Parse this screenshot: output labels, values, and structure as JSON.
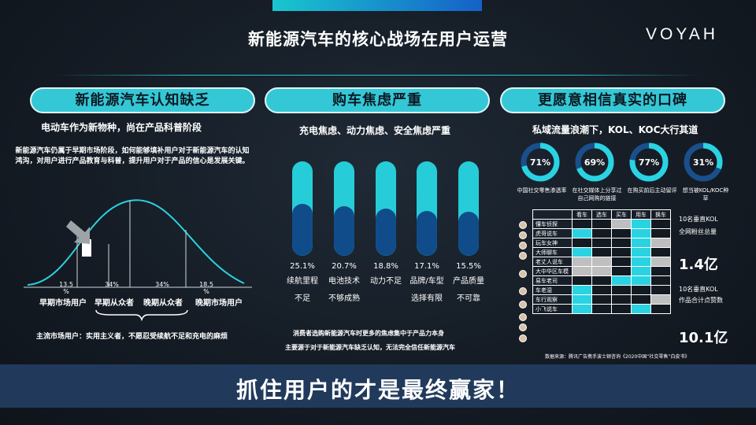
{
  "header": {
    "title": "新能源汽车的核心战场在用户运营",
    "logo": "VOYAH"
  },
  "col1": {
    "pill": "新能源汽车认知缺乏",
    "subhead": "电动车作为新物种，尚在产品科普阶段",
    "paragraph": "新能源汽车仍属于早期市场阶段，如何能够填补用户对于新能源汽车的认知鸿沟，对用户进行产品教育与科普，提升用户对于产品的信心是发展关键。",
    "percents": [
      "13.5 %",
      "34%",
      "34%",
      "18.5 %"
    ],
    "segments": [
      "早期市场用户",
      "早期从众者",
      "晚期从众者",
      "晚期市场用户"
    ],
    "footnote": "主流市场用户：实用主义者，不愿忍受续航不足和充电的麻烦"
  },
  "col2": {
    "pill": "购车焦虑严重",
    "subhead": "充电焦虑、动力焦虑、安全焦虑严重",
    "capsules": [
      {
        "value": "25.1%",
        "fill": 0.55,
        "line1": "续航里程",
        "line2": "不足"
      },
      {
        "value": "20.7%",
        "fill": 0.53,
        "line1": "电池技术",
        "line2": "不够成熟"
      },
      {
        "value": "18.8%",
        "fill": 0.5,
        "line1": "动力不足",
        "line2": ""
      },
      {
        "value": "17.1%",
        "fill": 0.48,
        "line1": "品牌/车型",
        "line2": "选择有限"
      },
      {
        "value": "15.5%",
        "fill": 0.47,
        "line1": "产品质量",
        "line2": "不可靠"
      }
    ],
    "note1": "消费者选购新能源汽车时更多的焦虑集中于产品力本身",
    "note2": "主要源于对于新能源汽车缺乏认知，无法完全信任新能源汽车"
  },
  "col3": {
    "pill": "更愿意相信真实的口碑",
    "subhead": "私域流量浪潮下，KOL、KOC大行其道",
    "donuts": [
      {
        "value": "71%",
        "fraction": 0.71,
        "label": "中国社交零售渗透率"
      },
      {
        "value": "69%",
        "fraction": 0.69,
        "label": "在社交媒体上分享过自己网购的链接"
      },
      {
        "value": "77%",
        "fraction": 0.77,
        "label": "在购买前后主动留评"
      },
      {
        "value": "31%",
        "fraction": 0.31,
        "label": "想当被KOL/KOC种草"
      }
    ],
    "matrix_headers": [
      "看车",
      "选车",
      "买车",
      "用车",
      "换车"
    ],
    "matrix_rows": [
      {
        "name": "懂车侦探",
        "cells": [
          "d",
          "d",
          "g",
          "c",
          "d"
        ]
      },
      {
        "name": "虎哥说车",
        "cells": [
          "c",
          "d",
          "d",
          "c",
          "d"
        ]
      },
      {
        "name": "玩车女神",
        "cells": [
          "d",
          "d",
          "d",
          "c",
          "g"
        ]
      },
      {
        "name": "大师聊车",
        "cells": [
          "c",
          "d",
          "d",
          "c",
          "d"
        ]
      },
      {
        "name": "老丈人说车",
        "cells": [
          "g",
          "g",
          "d",
          "c",
          "g"
        ]
      },
      {
        "name": "大中华区车模",
        "cells": [
          "g",
          "g",
          "d",
          "c",
          "d"
        ]
      },
      {
        "name": "易车老司",
        "cells": [
          "d",
          "d",
          "c",
          "c",
          "d"
        ]
      },
      {
        "name": "车老湿",
        "cells": [
          "c",
          "d",
          "d",
          "d",
          "d"
        ]
      },
      {
        "name": "车行观察",
        "cells": [
          "c",
          "d",
          "d",
          "d",
          "g"
        ]
      },
      {
        "name": "小飞说车",
        "cells": [
          "c",
          "d",
          "d",
          "c",
          "d"
        ]
      }
    ],
    "kol1_line1": "10名垂直KOL",
    "kol1_line2": "全网粉丝总量",
    "kol1_value": "1.4亿",
    "kol2_line1": "10名垂直KOL",
    "kol2_line2": "作品合计点赞数",
    "kol2_value": "10.1亿",
    "source": "数据来源：腾讯广告携手波士顿咨询《2020中国“社交零售”白皮书》"
  },
  "footer": {
    "slogan": "抓住用户的才是最终赢家！"
  },
  "colors": {
    "accent": "#34c8d6",
    "dark_fill": "#114c8a",
    "band": "#213a5c"
  }
}
